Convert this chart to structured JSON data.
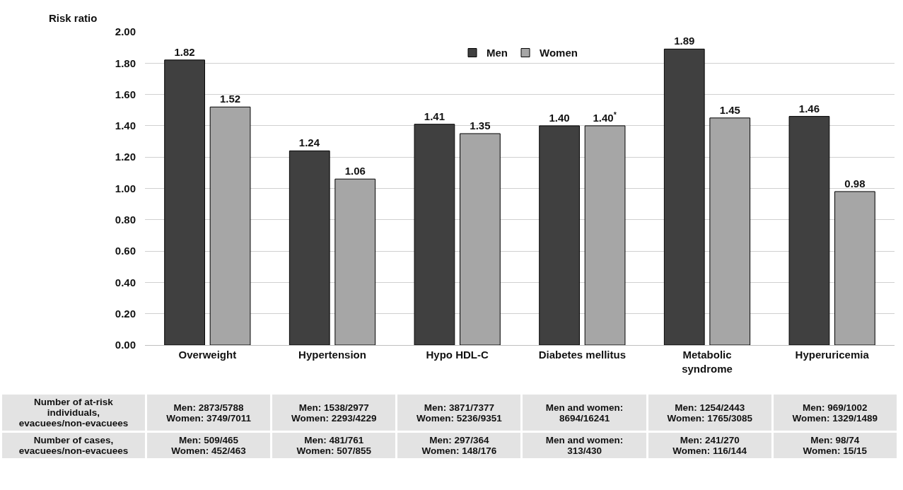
{
  "chart_data": {
    "type": "bar",
    "ylabel": "Risk ratio",
    "categories": [
      "Overweight",
      "Hypertension",
      "Hypo HDL-C",
      "Diabetes mellitus",
      "Metabolic syndrome",
      "Hyperuricemia"
    ],
    "series": [
      {
        "name": "Men",
        "color": "#404040",
        "values": [
          1.82,
          1.24,
          1.41,
          1.4,
          1.89,
          1.46
        ],
        "value_labels": [
          "1.82",
          "1.24",
          "1.41",
          "1.40",
          "1.89",
          "1.46"
        ]
      },
      {
        "name": "Women",
        "color": "#a6a6a6",
        "values": [
          1.52,
          1.06,
          1.35,
          1.4,
          1.45,
          0.98
        ],
        "value_labels": [
          "1.52",
          "1.06",
          "1.35",
          "1.40$^{*}$",
          "1.45",
          "0.98"
        ]
      }
    ],
    "ylim": [
      0,
      2
    ],
    "yticks": [
      {
        "value": 0,
        "label": "0.00"
      },
      {
        "value": 0.2,
        "label": "0.20"
      },
      {
        "value": 0.4,
        "label": "0.40"
      },
      {
        "value": 0.6,
        "label": "0.60"
      },
      {
        "value": 0.8,
        "label": "0.80"
      },
      {
        "value": 1,
        "label": "1.00"
      },
      {
        "value": 1.2,
        "label": "1.20"
      },
      {
        "value": 1.4,
        "label": "1.40"
      },
      {
        "value": 1.6,
        "label": "1.60"
      },
      {
        "value": 1.8,
        "label": "1.80"
      },
      {
        "value": 2,
        "label": "2.00"
      }
    ],
    "grid": "y",
    "legend": "top",
    "annotations": [
      "Number of at-risk\nindividuals,\nevacuees/non-evacuees",
      "Men: 2873/5788\nWomen: 3749/7011",
      "Men: 1538/2977\nWomen: 2293/4229",
      "Men: 3871/7377\nWomen: 5236/9351",
      "Men and women:\n8694/16241",
      "Men: 1254/2443\nWomen: 1765/3085",
      "Men: 969/1002\nWomen: 1329/1489",
      "Number of cases,\nevacuees/non-evacuees",
      "Men: 509/465\nWomen: 452/463",
      "Men: 481/761\nWomen: 507/855",
      "Men: 297/364\nWomen: 148/176",
      "Men and women:\n313/430",
      "Men: 241/270\nWomen: 116/144",
      "Men: 98/74\nWomen: 15/15"
    ]
  }
}
